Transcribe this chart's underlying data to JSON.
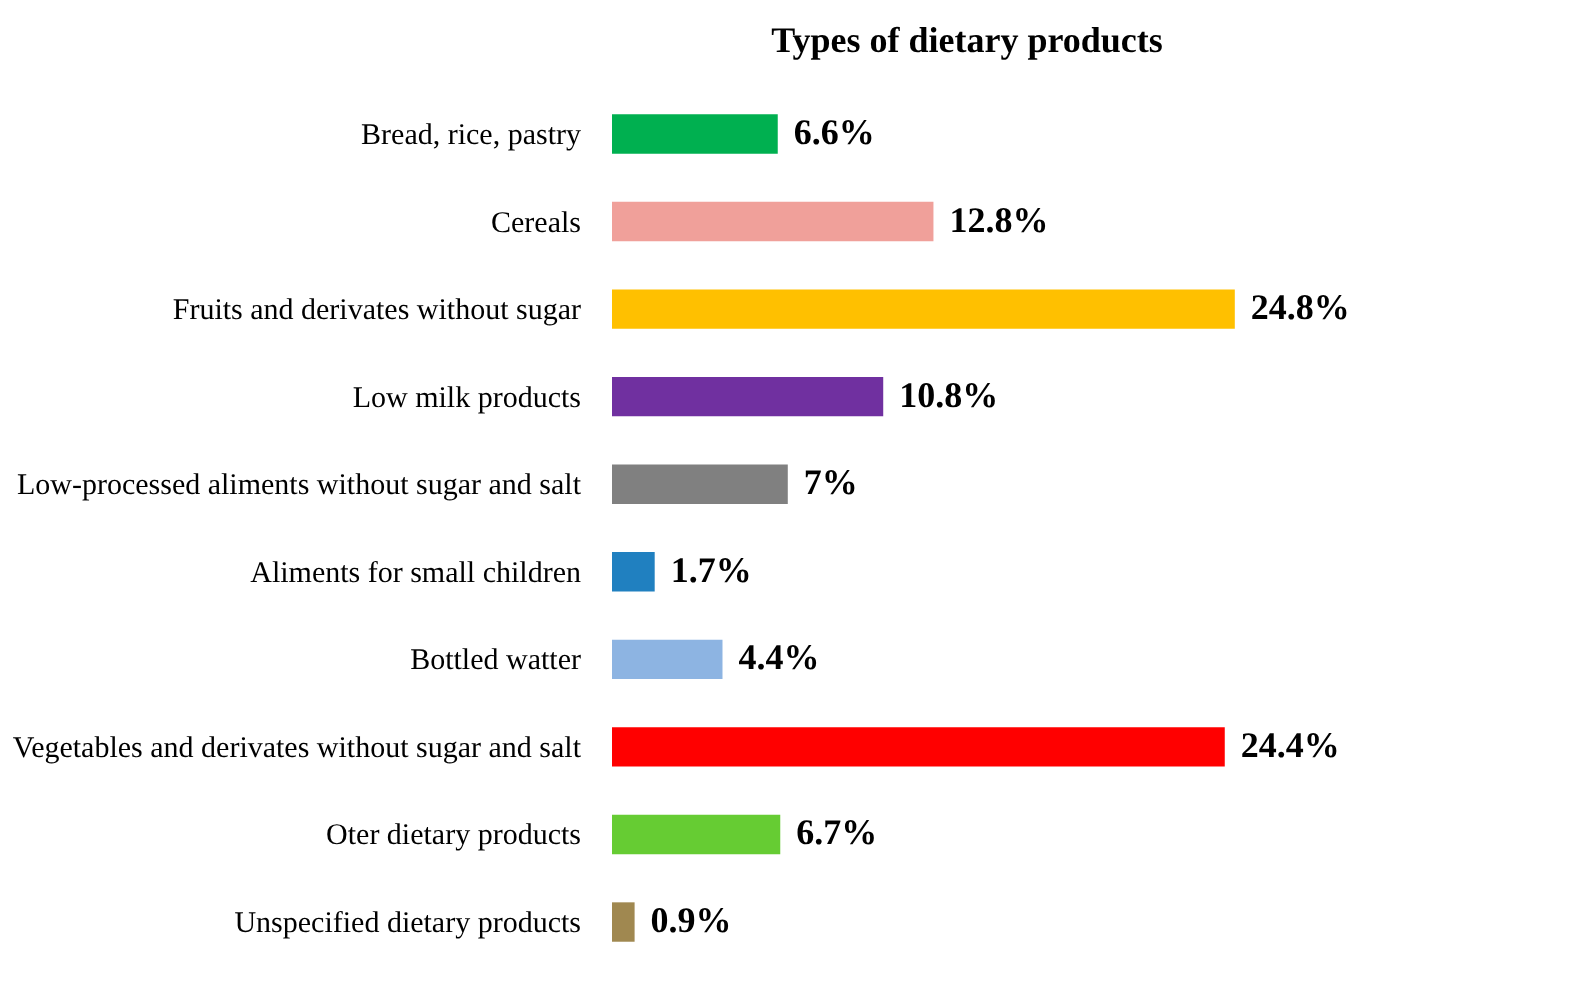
{
  "chart_data": {
    "type": "bar",
    "orientation": "horizontal",
    "title": "Types of dietary products",
    "categories": [
      "Bread, rice, pastry",
      "Cereals",
      "Fruits and derivates without sugar",
      "Low milk products",
      "Low-processed aliments without sugar and salt",
      "Aliments for small children",
      "Bottled watter",
      "Vegetables and derivates without sugar and salt",
      "Oter dietary products",
      "Unspecified dietary products"
    ],
    "values": [
      6.6,
      12.8,
      24.8,
      10.8,
      7,
      1.7,
      4.4,
      24.4,
      6.7,
      0.9
    ],
    "value_labels": [
      "6.6%",
      "12.8%",
      "24.8%",
      "10.8%",
      "7%",
      "1.7%",
      "4.4%",
      "24.4%",
      "6.7%",
      "0.9%"
    ],
    "colors": [
      "#00b050",
      "#f0a09a",
      "#ffc000",
      "#7030a0",
      "#808080",
      "#2080c0",
      "#8db4e2",
      "#ff0000",
      "#66cc33",
      "#a08850"
    ],
    "legend": false
  }
}
